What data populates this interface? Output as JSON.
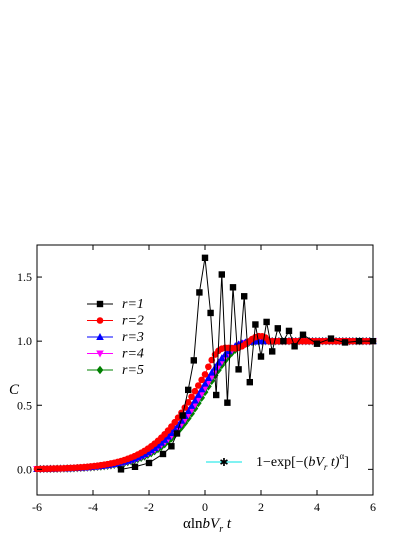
{
  "chart_data": {
    "type": "scatter",
    "title": "",
    "xlabel_parts": [
      "αln",
      "bV",
      "r",
      " t"
    ],
    "ylabel": "C",
    "xlim": [
      -6,
      6
    ],
    "ylim": [
      -0.2,
      1.75
    ],
    "xticks": [
      -6,
      -4,
      -2,
      0,
      2,
      4,
      6
    ],
    "xtick_labels": [
      "-6",
      "-4",
      "-2",
      "0",
      "2",
      "4",
      "6"
    ],
    "yticks": [
      0.0,
      0.5,
      1.0,
      1.5
    ],
    "ytick_labels": [
      "0.0",
      "0.5",
      "1.0",
      "1.5"
    ],
    "grid": false,
    "legend_position": "left",
    "series": [
      {
        "name": "r=1",
        "color": "#000000",
        "marker": "square",
        "x": [
          -3.0,
          -2.5,
          -2.0,
          -1.5,
          -1.2,
          -1.0,
          -0.8,
          -0.6,
          -0.4,
          -0.2,
          0.0,
          0.2,
          0.4,
          0.6,
          0.8,
          1.0,
          1.2,
          1.4,
          1.6,
          1.8,
          2.0,
          2.2,
          2.4,
          2.6,
          2.8,
          3.0,
          3.2,
          3.5,
          4.0,
          4.5,
          5.0,
          5.5,
          6.0
        ],
        "y": [
          0.0,
          0.02,
          0.05,
          0.12,
          0.18,
          0.28,
          0.42,
          0.62,
          0.85,
          1.38,
          1.65,
          1.22,
          0.58,
          1.52,
          0.52,
          1.42,
          0.78,
          1.35,
          0.68,
          1.13,
          0.88,
          1.15,
          0.92,
          1.1,
          1.0,
          1.08,
          0.96,
          1.05,
          0.98,
          1.02,
          0.99,
          1.0,
          1.0
        ]
      },
      {
        "name": "r=2",
        "color": "#ff0000",
        "marker": "circle",
        "shift": 0.3
      },
      {
        "name": "r=3",
        "color": "#0000ff",
        "marker": "triangle-up",
        "shift": 0.1
      },
      {
        "name": "r=4",
        "color": "#ff00ff",
        "marker": "triangle-down",
        "shift": 0.0
      },
      {
        "name": "r=5",
        "color": "#008000",
        "marker": "diamond",
        "shift": -0.08
      }
    ],
    "fit_curve": {
      "label_parts": [
        "1−exp[−(",
        "bV",
        "r",
        " t)",
        "α",
        "]"
      ],
      "color": "#00e5e5",
      "marker": "asterisk",
      "formula": "1 - exp(-(bV_r t)^alpha)"
    }
  }
}
